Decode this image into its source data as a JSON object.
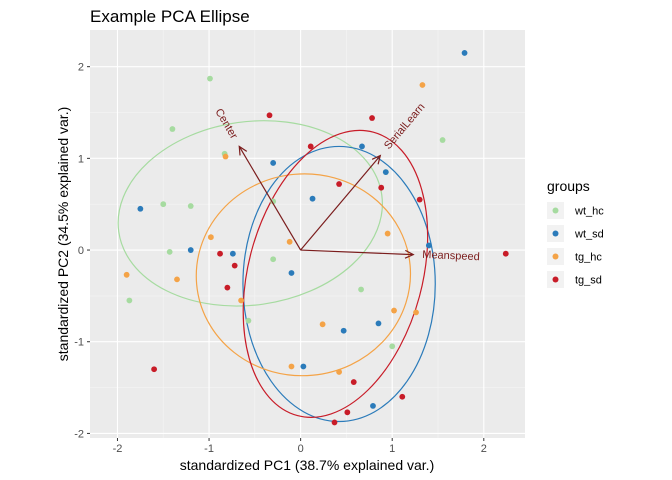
{
  "chart_data": {
    "type": "scatter",
    "title": "Example PCA Ellipse",
    "xlabel": "standardized PC1 (38.7% explained var.)",
    "ylabel": "standardized PC2 (34.5% explained var.)",
    "xlim": [
      -2.3,
      2.45
    ],
    "ylim": [
      -2.05,
      2.4
    ],
    "xticks": [
      -2,
      -1,
      0,
      1,
      2
    ],
    "yticks": [
      -2,
      -1,
      0,
      1,
      2
    ],
    "xtick_labels": [
      "-2",
      "-1",
      "0",
      "1",
      "2"
    ],
    "ytick_labels": [
      "-2",
      "-1",
      "0",
      "1",
      "2"
    ],
    "grid": true,
    "panel_color": "#ebebeb",
    "legend": {
      "title": "groups",
      "position": "right"
    },
    "arrow_color": "#7b1d1d",
    "series": [
      {
        "name": "wt_hc",
        "color": "#a6dba0",
        "ellipse": {
          "cx": -0.55,
          "cy": 0.4,
          "rx": 1.45,
          "ry": 1.0,
          "angle": 8
        },
        "points": [
          [
            -0.99,
            1.87
          ],
          [
            -1.4,
            1.32
          ],
          [
            -0.83,
            1.05
          ],
          [
            -1.2,
            0.48
          ],
          [
            -1.5,
            0.5
          ],
          [
            -0.3,
            0.53
          ],
          [
            -1.43,
            -0.02
          ],
          [
            -1.87,
            -0.55
          ],
          [
            -0.3,
            -0.1
          ],
          [
            -0.57,
            -0.77
          ],
          [
            0.66,
            -0.43
          ],
          [
            0.93,
            0.85
          ],
          [
            1.55,
            1.2
          ],
          [
            1.0,
            -1.05
          ]
        ]
      },
      {
        "name": "wt_sd",
        "color": "#2b7bba",
        "ellipse": {
          "cx": 0.42,
          "cy": -0.37,
          "rx": 1.05,
          "ry": 1.5,
          "angle": 0
        },
        "points": [
          [
            1.79,
            2.15
          ],
          [
            -1.75,
            0.45
          ],
          [
            -1.2,
            0.0
          ],
          [
            -0.3,
            0.95
          ],
          [
            -0.74,
            -0.04
          ],
          [
            -0.1,
            -0.25
          ],
          [
            0.13,
            0.56
          ],
          [
            0.67,
            1.13
          ],
          [
            0.03,
            -1.27
          ],
          [
            0.47,
            -0.88
          ],
          [
            0.85,
            -0.8
          ],
          [
            0.79,
            -1.7
          ],
          [
            0.93,
            0.85
          ],
          [
            1.4,
            0.05
          ]
        ]
      },
      {
        "name": "tg_hc",
        "color": "#f4a347",
        "ellipse": {
          "cx": 0.03,
          "cy": -0.27,
          "rx": 1.17,
          "ry": 1.1,
          "angle": 5
        },
        "points": [
          [
            1.33,
            1.8
          ],
          [
            -0.82,
            1.02
          ],
          [
            -0.98,
            0.14
          ],
          [
            -1.35,
            -0.32
          ],
          [
            -1.9,
            -0.27
          ],
          [
            -0.12,
            0.09
          ],
          [
            -0.65,
            -0.55
          ],
          [
            0.24,
            -0.81
          ],
          [
            -0.1,
            -1.27
          ],
          [
            0.95,
            0.18
          ],
          [
            1.02,
            -0.66
          ],
          [
            1.26,
            -0.68
          ],
          [
            0.42,
            -1.33
          ]
        ]
      },
      {
        "name": "tg_sd",
        "color": "#c81c28",
        "ellipse": {
          "cx": 0.38,
          "cy": -0.26,
          "rx": 0.95,
          "ry": 1.6,
          "angle": -15
        },
        "points": [
          [
            -0.34,
            1.47
          ],
          [
            0.78,
            1.44
          ],
          [
            0.11,
            1.13
          ],
          [
            0.42,
            0.72
          ],
          [
            0.88,
            0.68
          ],
          [
            1.3,
            0.55
          ],
          [
            -0.88,
            -0.04
          ],
          [
            -0.72,
            -0.17
          ],
          [
            -0.8,
            -0.41
          ],
          [
            -1.6,
            -1.3
          ],
          [
            0.58,
            -1.44
          ],
          [
            1.11,
            -1.6
          ],
          [
            0.51,
            -1.77
          ],
          [
            0.37,
            -1.88
          ],
          [
            2.24,
            -0.04
          ]
        ]
      }
    ],
    "arrows": [
      {
        "label": "Center",
        "x": -0.67,
        "y": 1.13
      },
      {
        "label": "SerialLearn",
        "x": 0.87,
        "y": 1.03
      },
      {
        "label": "Meanspeed",
        "x": 1.23,
        "y": -0.05
      }
    ]
  }
}
